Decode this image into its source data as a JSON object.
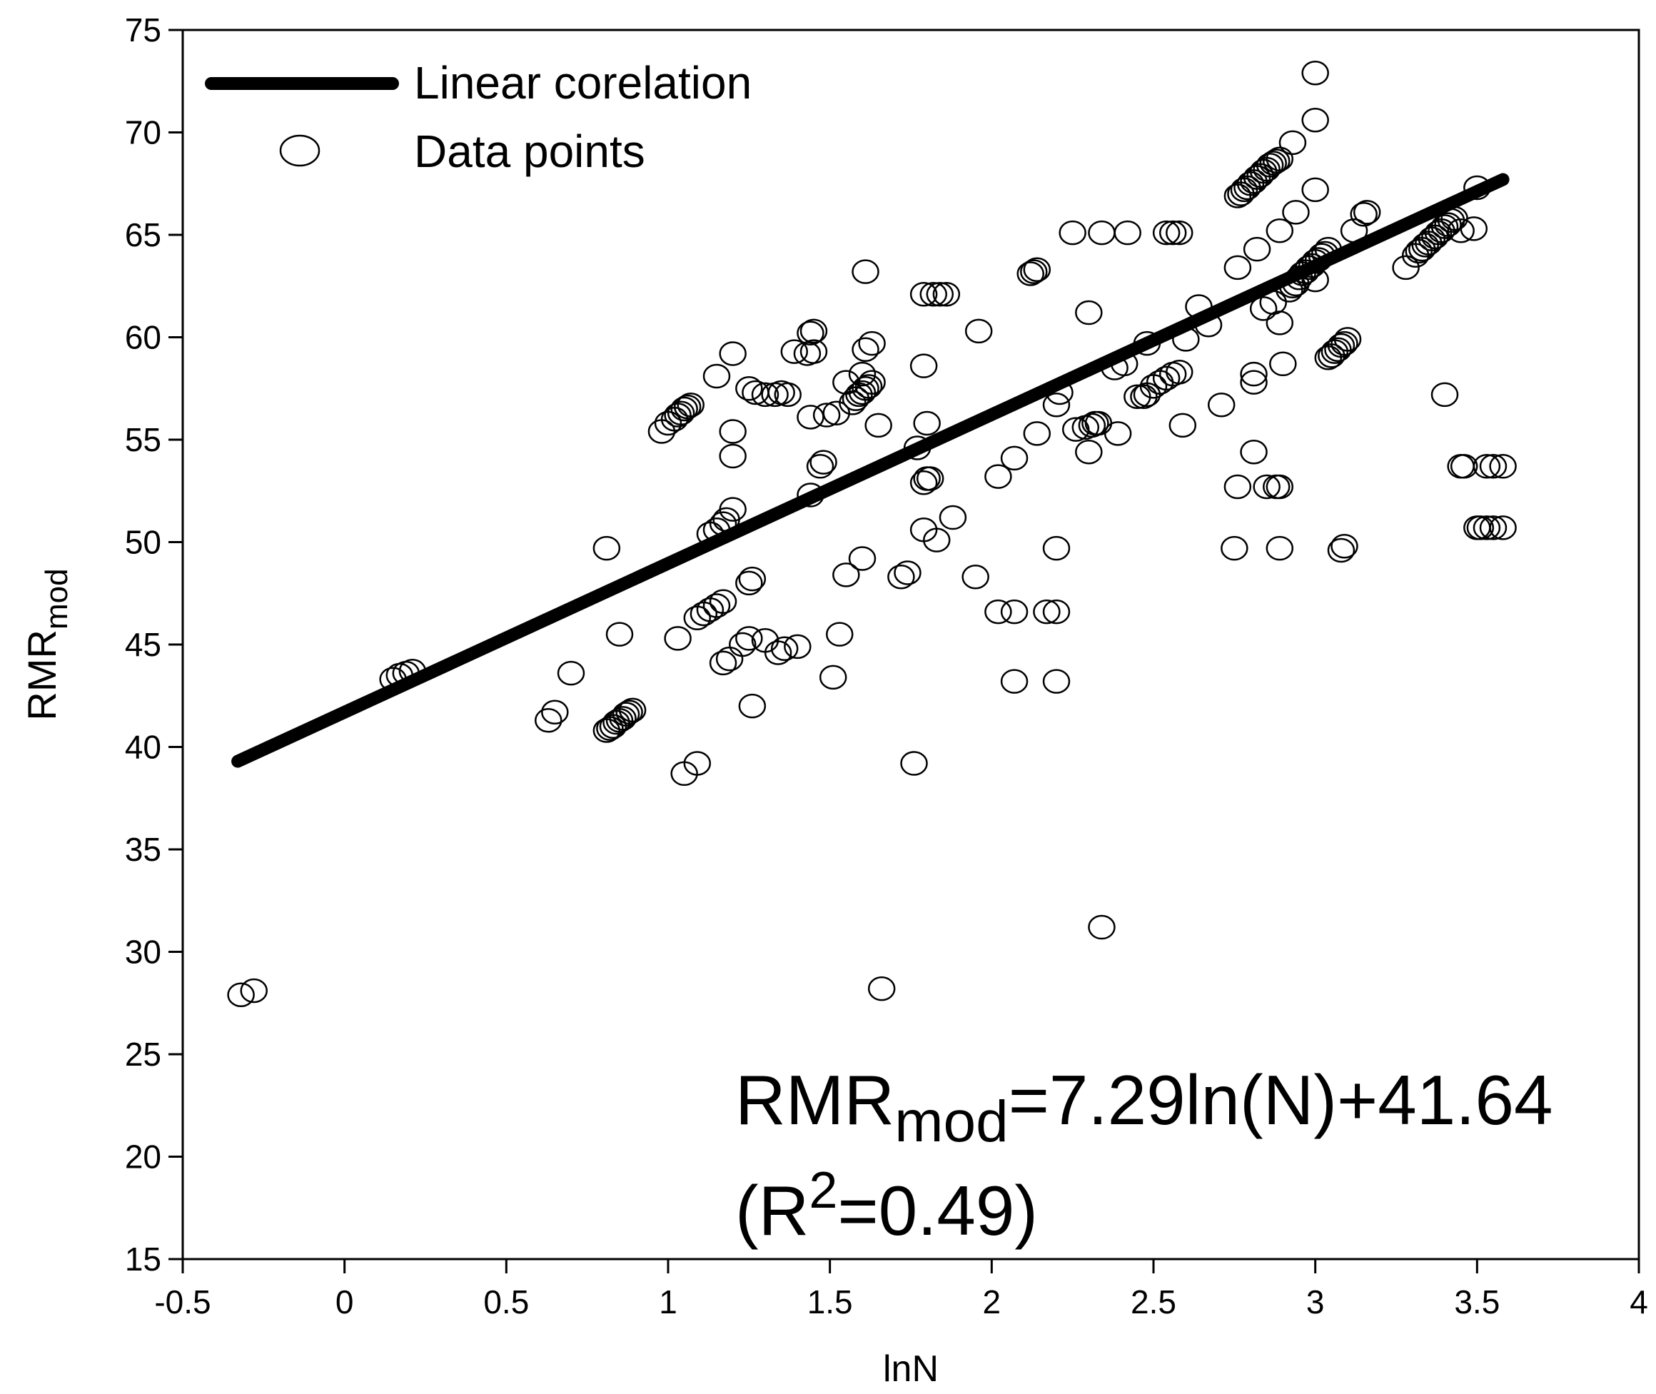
{
  "chart_data": {
    "type": "scatter",
    "title": "",
    "xlabel": "lnN",
    "ylabel": {
      "base": "RMR",
      "sub": "mod"
    },
    "xlim": [
      -0.5,
      4
    ],
    "ylim": [
      15,
      75
    ],
    "xticks": [
      -0.5,
      0,
      0.5,
      1,
      1.5,
      2,
      2.5,
      3,
      3.5,
      4
    ],
    "yticks": [
      15,
      20,
      25,
      30,
      35,
      40,
      45,
      50,
      55,
      60,
      65,
      70,
      75
    ],
    "grid": false,
    "legend": {
      "placement": "top-left",
      "entries": [
        {
          "label": "Linear corelation",
          "marker": "line"
        },
        {
          "label": "Data points",
          "marker": "open-circle"
        }
      ]
    },
    "annotation": {
      "equation": {
        "base": "RMR",
        "sub": "mod",
        "rest": "=7.29ln(N)+41.64"
      },
      "r2": {
        "open": "(R",
        "sup": "2",
        "rest": "=0.49)"
      }
    },
    "series": [
      {
        "name": "Linear corelation",
        "type": "line",
        "x": [
          -0.33,
          3.58
        ],
        "y": [
          39.3,
          67.7
        ]
      },
      {
        "name": "Data points",
        "type": "scatter",
        "points": [
          [
            -0.32,
            27.9
          ],
          [
            -0.28,
            28.1
          ],
          [
            0.15,
            43.3
          ],
          [
            0.17,
            43.5
          ],
          [
            0.19,
            43.6
          ],
          [
            0.21,
            43.7
          ],
          [
            0.63,
            41.3
          ],
          [
            0.65,
            41.7
          ],
          [
            0.7,
            43.6
          ],
          [
            0.81,
            49.7
          ],
          [
            0.81,
            40.8
          ],
          [
            0.82,
            40.9
          ],
          [
            0.83,
            41.0
          ],
          [
            0.84,
            41.2
          ],
          [
            0.85,
            41.3
          ],
          [
            0.86,
            41.4
          ],
          [
            0.87,
            41.6
          ],
          [
            0.88,
            41.7
          ],
          [
            0.89,
            41.8
          ],
          [
            0.85,
            45.5
          ],
          [
            0.98,
            55.4
          ],
          [
            1.0,
            55.8
          ],
          [
            1.02,
            56.0
          ],
          [
            1.03,
            56.2
          ],
          [
            1.04,
            56.3
          ],
          [
            1.05,
            56.5
          ],
          [
            1.06,
            56.6
          ],
          [
            1.07,
            56.7
          ],
          [
            1.03,
            45.3
          ],
          [
            1.05,
            38.7
          ],
          [
            1.09,
            39.2
          ],
          [
            1.09,
            46.3
          ],
          [
            1.11,
            46.5
          ],
          [
            1.13,
            46.7
          ],
          [
            1.15,
            46.9
          ],
          [
            1.17,
            47.1
          ],
          [
            1.13,
            50.4
          ],
          [
            1.15,
            50.6
          ],
          [
            1.17,
            50.9
          ],
          [
            1.18,
            51.1
          ],
          [
            1.2,
            51.6
          ],
          [
            1.15,
            58.1
          ],
          [
            1.2,
            59.2
          ],
          [
            1.2,
            55.4
          ],
          [
            1.2,
            54.2
          ],
          [
            1.17,
            44.1
          ],
          [
            1.19,
            44.3
          ],
          [
            1.23,
            45.0
          ],
          [
            1.25,
            45.3
          ],
          [
            1.25,
            48.0
          ],
          [
            1.26,
            48.2
          ],
          [
            1.26,
            42.0
          ],
          [
            1.25,
            57.5
          ],
          [
            1.27,
            57.3
          ],
          [
            1.3,
            57.2
          ],
          [
            1.33,
            57.2
          ],
          [
            1.35,
            57.3
          ],
          [
            1.37,
            57.2
          ],
          [
            1.3,
            45.2
          ],
          [
            1.34,
            44.6
          ],
          [
            1.36,
            44.8
          ],
          [
            1.4,
            44.9
          ],
          [
            1.39,
            59.3
          ],
          [
            1.43,
            59.2
          ],
          [
            1.45,
            59.3
          ],
          [
            1.44,
            60.2
          ],
          [
            1.45,
            60.3
          ],
          [
            1.44,
            56.1
          ],
          [
            1.44,
            52.3
          ],
          [
            1.47,
            53.7
          ],
          [
            1.48,
            53.9
          ],
          [
            1.49,
            56.2
          ],
          [
            1.52,
            56.3
          ],
          [
            1.51,
            43.4
          ],
          [
            1.53,
            45.5
          ],
          [
            1.55,
            48.4
          ],
          [
            1.55,
            57.8
          ],
          [
            1.57,
            56.8
          ],
          [
            1.58,
            57.0
          ],
          [
            1.59,
            57.2
          ],
          [
            1.6,
            57.3
          ],
          [
            1.61,
            57.5
          ],
          [
            1.62,
            57.6
          ],
          [
            1.63,
            57.8
          ],
          [
            1.6,
            58.2
          ],
          [
            1.61,
            59.4
          ],
          [
            1.63,
            59.7
          ],
          [
            1.61,
            63.2
          ],
          [
            1.6,
            49.2
          ],
          [
            1.65,
            55.7
          ],
          [
            1.66,
            28.2
          ],
          [
            1.72,
            48.3
          ],
          [
            1.74,
            48.5
          ],
          [
            1.76,
            39.2
          ],
          [
            1.77,
            54.6
          ],
          [
            1.79,
            52.9
          ],
          [
            1.8,
            53.1
          ],
          [
            1.81,
            53.1
          ],
          [
            1.79,
            50.6
          ],
          [
            1.8,
            55.8
          ],
          [
            1.79,
            58.6
          ],
          [
            1.79,
            62.1
          ],
          [
            1.82,
            62.1
          ],
          [
            1.84,
            62.1
          ],
          [
            1.86,
            62.1
          ],
          [
            1.83,
            50.1
          ],
          [
            1.88,
            51.2
          ],
          [
            1.95,
            48.3
          ],
          [
            1.96,
            60.3
          ],
          [
            2.02,
            46.6
          ],
          [
            2.02,
            53.2
          ],
          [
            2.07,
            46.6
          ],
          [
            2.07,
            43.2
          ],
          [
            2.07,
            54.1
          ],
          [
            2.12,
            63.1
          ],
          [
            2.13,
            63.2
          ],
          [
            2.14,
            63.3
          ],
          [
            2.14,
            55.3
          ],
          [
            2.17,
            46.6
          ],
          [
            2.2,
            46.6
          ],
          [
            2.2,
            43.2
          ],
          [
            2.2,
            49.7
          ],
          [
            2.2,
            56.7
          ],
          [
            2.21,
            57.3
          ],
          [
            2.25,
            65.1
          ],
          [
            2.26,
            55.5
          ],
          [
            2.29,
            55.6
          ],
          [
            2.3,
            54.4
          ],
          [
            2.3,
            61.2
          ],
          [
            2.31,
            55.7
          ],
          [
            2.32,
            55.8
          ],
          [
            2.33,
            55.8
          ],
          [
            2.34,
            65.1
          ],
          [
            2.34,
            31.2
          ],
          [
            2.38,
            58.5
          ],
          [
            2.39,
            55.3
          ],
          [
            2.41,
            58.7
          ],
          [
            2.42,
            65.1
          ],
          [
            2.45,
            57.1
          ],
          [
            2.47,
            57.1
          ],
          [
            2.48,
            57.2
          ],
          [
            2.48,
            59.7
          ],
          [
            2.5,
            57.6
          ],
          [
            2.52,
            57.8
          ],
          [
            2.54,
            58.0
          ],
          [
            2.56,
            58.2
          ],
          [
            2.58,
            58.3
          ],
          [
            2.54,
            65.1
          ],
          [
            2.56,
            65.1
          ],
          [
            2.58,
            65.1
          ],
          [
            2.59,
            55.7
          ],
          [
            2.6,
            59.9
          ],
          [
            2.64,
            61.5
          ],
          [
            2.67,
            60.6
          ],
          [
            2.71,
            56.7
          ],
          [
            2.75,
            49.7
          ],
          [
            2.76,
            52.7
          ],
          [
            2.76,
            63.4
          ],
          [
            2.76,
            66.9
          ],
          [
            2.77,
            67.0
          ],
          [
            2.78,
            67.2
          ],
          [
            2.79,
            67.3
          ],
          [
            2.8,
            67.5
          ],
          [
            2.81,
            67.6
          ],
          [
            2.82,
            67.8
          ],
          [
            2.83,
            67.9
          ],
          [
            2.84,
            68.1
          ],
          [
            2.85,
            68.2
          ],
          [
            2.86,
            68.4
          ],
          [
            2.87,
            68.5
          ],
          [
            2.88,
            68.6
          ],
          [
            2.89,
            68.7
          ],
          [
            2.81,
            54.4
          ],
          [
            2.81,
            57.8
          ],
          [
            2.81,
            58.2
          ],
          [
            2.82,
            64.3
          ],
          [
            2.84,
            61.4
          ],
          [
            2.85,
            52.7
          ],
          [
            2.87,
            61.7
          ],
          [
            2.88,
            52.7
          ],
          [
            2.89,
            52.7
          ],
          [
            2.89,
            49.7
          ],
          [
            2.89,
            60.7
          ],
          [
            2.89,
            65.2
          ],
          [
            2.9,
            58.7
          ],
          [
            2.92,
            62.3
          ],
          [
            2.93,
            62.5
          ],
          [
            2.94,
            66.1
          ],
          [
            2.94,
            62.6
          ],
          [
            2.95,
            62.9
          ],
          [
            2.96,
            63.1
          ],
          [
            2.97,
            63.2
          ],
          [
            2.98,
            63.4
          ],
          [
            2.99,
            63.5
          ],
          [
            3.0,
            63.7
          ],
          [
            3.01,
            63.8
          ],
          [
            3.02,
            64.0
          ],
          [
            3.03,
            64.1
          ],
          [
            3.04,
            64.3
          ],
          [
            2.93,
            69.5
          ],
          [
            3.0,
            70.6
          ],
          [
            3.0,
            72.9
          ],
          [
            3.0,
            67.2
          ],
          [
            3.0,
            62.8
          ],
          [
            3.04,
            59.0
          ],
          [
            3.05,
            59.1
          ],
          [
            3.06,
            59.3
          ],
          [
            3.07,
            59.4
          ],
          [
            3.08,
            59.6
          ],
          [
            3.09,
            59.7
          ],
          [
            3.1,
            59.9
          ],
          [
            3.08,
            49.6
          ],
          [
            3.09,
            49.8
          ],
          [
            3.12,
            65.2
          ],
          [
            3.15,
            66.0
          ],
          [
            3.16,
            66.1
          ],
          [
            3.28,
            63.4
          ],
          [
            3.31,
            64.0
          ],
          [
            3.32,
            64.2
          ],
          [
            3.33,
            64.3
          ],
          [
            3.34,
            64.5
          ],
          [
            3.35,
            64.6
          ],
          [
            3.36,
            64.8
          ],
          [
            3.37,
            64.9
          ],
          [
            3.38,
            65.1
          ],
          [
            3.39,
            65.2
          ],
          [
            3.4,
            65.4
          ],
          [
            3.41,
            65.5
          ],
          [
            3.42,
            65.7
          ],
          [
            3.43,
            65.8
          ],
          [
            3.4,
            57.2
          ],
          [
            3.45,
            53.7
          ],
          [
            3.46,
            53.7
          ],
          [
            3.45,
            65.2
          ],
          [
            3.49,
            65.3
          ],
          [
            3.5,
            67.3
          ],
          [
            3.5,
            50.7
          ],
          [
            3.51,
            50.7
          ],
          [
            3.53,
            50.7
          ],
          [
            3.55,
            50.7
          ],
          [
            3.58,
            50.7
          ],
          [
            3.53,
            53.7
          ],
          [
            3.55,
            53.7
          ],
          [
            3.58,
            53.7
          ]
        ]
      }
    ]
  }
}
